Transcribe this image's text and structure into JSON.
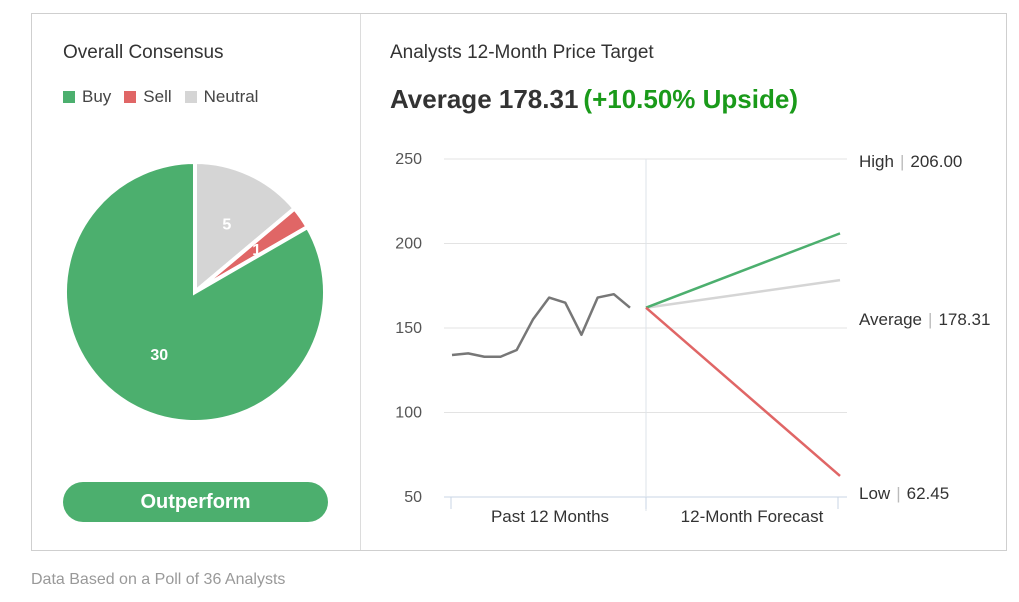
{
  "consensus": {
    "title": "Overall Consensus",
    "legend": [
      {
        "label": "Buy",
        "color": "#4caf6e"
      },
      {
        "label": "Sell",
        "color": "#e06666"
      },
      {
        "label": "Neutral",
        "color": "#d5d5d5"
      }
    ],
    "rating": "Outperform",
    "rating_color": "#4caf6e"
  },
  "target": {
    "title": "Analysts 12-Month Price Target",
    "average_prefix": "Average 178.31",
    "upside": "(+10.50% Upside)",
    "upside_color": "#1a9a1a",
    "high_label": "High",
    "high_value": "206.00",
    "average_label": "Average",
    "average_value": "178.31",
    "low_label": "Low",
    "low_value": "62.45"
  },
  "footnote": "Data Based on a Poll of 36 Analysts",
  "chart_data": [
    {
      "type": "pie",
      "slices": [
        {
          "name": "Buy",
          "value": 30,
          "color": "#4caf6e"
        },
        {
          "name": "Sell",
          "value": 1,
          "color": "#e06666"
        },
        {
          "name": "Neutral",
          "value": 5,
          "color": "#d5d5d5"
        }
      ]
    },
    {
      "type": "line",
      "yticks": [
        250,
        200,
        150,
        100,
        50
      ],
      "ylim": [
        50,
        250
      ],
      "x_categories": [
        "Past 12 Months",
        "12-Month Forecast"
      ],
      "history": {
        "values": [
          134,
          135,
          133,
          133,
          137,
          155,
          168,
          165,
          146,
          168,
          170,
          162
        ],
        "color": "#777777"
      },
      "forecast": {
        "start": 162,
        "high": 206.0,
        "average": 178.31,
        "low": 62.45,
        "high_color": "#4caf6e",
        "average_color": "#d5d5d5",
        "low_color": "#e06666"
      },
      "grid": true
    }
  ]
}
